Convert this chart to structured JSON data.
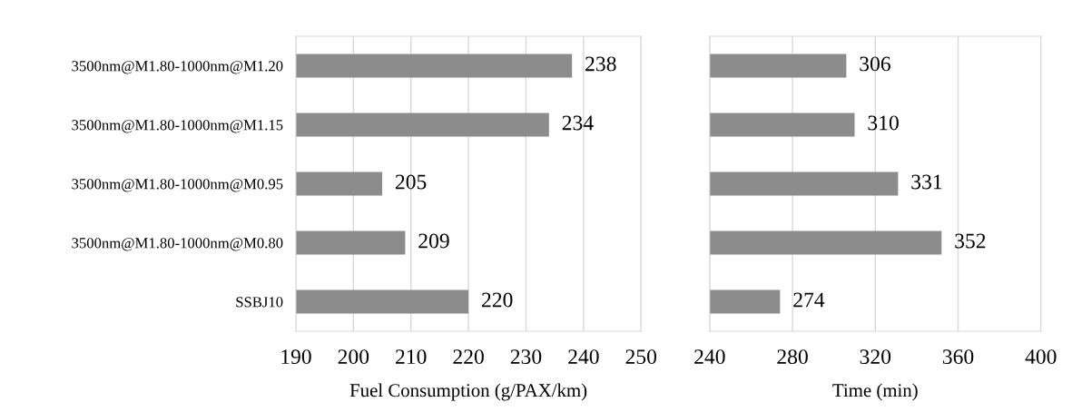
{
  "chart_data": [
    {
      "type": "bar",
      "orientation": "horizontal",
      "categories": [
        "3500nm@M1.80-1000nm@M1.20",
        "3500nm@M1.80-1000nm@M1.15",
        "3500nm@M1.80-1000nm@M0.95",
        "3500nm@M1.80-1000nm@M0.80",
        "SSBJ10"
      ],
      "series": [
        {
          "color": "#8c8c8c",
          "values": [
            238,
            234,
            205,
            209,
            220
          ]
        }
      ],
      "xlim": [
        190,
        250
      ],
      "xticks": [
        190,
        200,
        210,
        220,
        230,
        240,
        250
      ],
      "xlabel": "Fuel Consumption (g/PAX/km)",
      "grid": "x",
      "data_labels": true,
      "legend": false
    },
    {
      "type": "bar",
      "orientation": "horizontal",
      "categories": [
        null,
        null,
        null,
        null,
        null
      ],
      "series": [
        {
          "color": "#8c8c8c",
          "values": [
            306,
            310,
            331,
            352,
            274
          ]
        }
      ],
      "xlim": [
        240,
        400
      ],
      "xticks": [
        240,
        280,
        320,
        360,
        400
      ],
      "xlabel": "Time (min)",
      "grid": "x",
      "data_labels": true,
      "legend": false
    }
  ]
}
